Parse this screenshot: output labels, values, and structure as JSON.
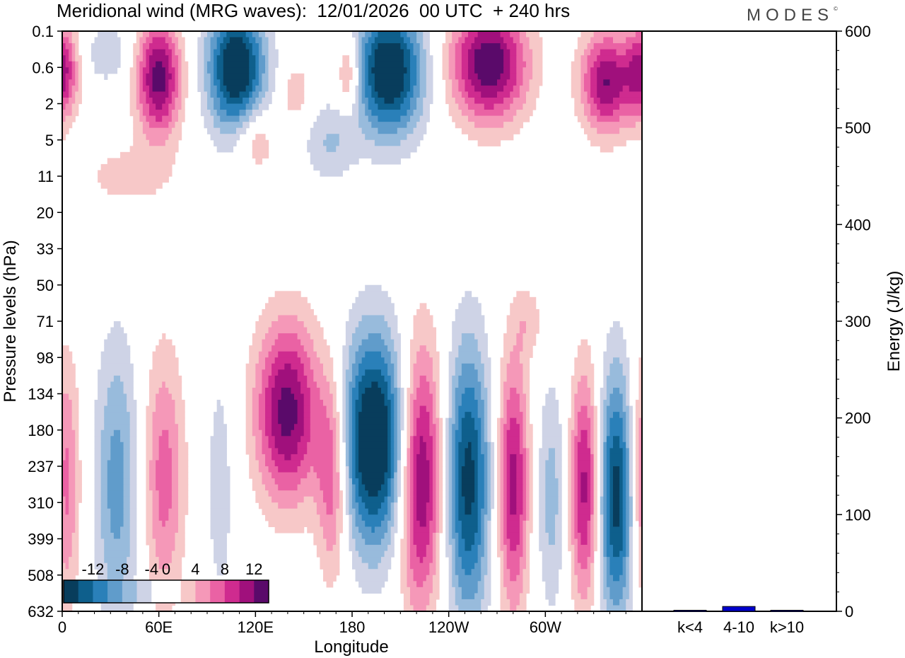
{
  "header": {
    "title": "Meridional wind (MRG waves):  12/01/2026  00 UTC  + 240 hrs",
    "brand": "MODES",
    "brand_mark": "©"
  },
  "colors": {
    "neg": [
      "#083d5c",
      "#0e5f8c",
      "#2a80b9",
      "#609ccb",
      "#98bbdc",
      "#ced3e6"
    ],
    "pos": [
      "#f7c8c8",
      "#f598b8",
      "#ea62a4",
      "#cf2b8f",
      "#a0107c",
      "#5a0a6a"
    ],
    "bar": "#0000cc"
  },
  "chart_data": [
    {
      "type": "heatmap",
      "title": "Meridional wind (MRG waves)",
      "xlabel": "Longitude",
      "ylabel": "Pressure levels (hPa)",
      "x_ticks": [
        "0",
        "60E",
        "120E",
        "180",
        "120W",
        "60W"
      ],
      "y_levels": [
        "0.1",
        "0.6",
        "2",
        "5",
        "11",
        "20",
        "33",
        "50",
        "71",
        "98",
        "134",
        "180",
        "237",
        "310",
        "399",
        "508",
        "632"
      ],
      "colorbar_labels": [
        "-12",
        "-8",
        "-4",
        "0",
        "4",
        "8",
        "12"
      ],
      "contour_levels": [
        -14,
        -12,
        -10,
        -8,
        -6,
        -4,
        -2,
        2,
        4,
        6,
        8,
        10,
        12,
        14
      ],
      "features": [
        {
          "lon": 0,
          "level_index": 1.1,
          "value": 10,
          "width_deg": 10,
          "depth_levels": 1.3
        },
        {
          "lon": 28,
          "level_index": 0.6,
          "value": -4,
          "width_deg": 14,
          "depth_levels": 0.8
        },
        {
          "lon": 60,
          "level_index": 1.3,
          "value": 13,
          "width_deg": 14,
          "depth_levels": 1.6
        },
        {
          "lon": 108,
          "level_index": 1.0,
          "value": -15,
          "width_deg": 18,
          "depth_levels": 1.8
        },
        {
          "lon": 145,
          "level_index": 1.7,
          "value": 4,
          "width_deg": 8,
          "depth_levels": 0.8
        },
        {
          "lon": 178,
          "level_index": 1.2,
          "value": 7,
          "width_deg": 8,
          "depth_levels": 1.0
        },
        {
          "lon": 203,
          "level_index": 1.1,
          "value": -15,
          "width_deg": 22,
          "depth_levels": 1.8
        },
        {
          "lon": 265,
          "level_index": 0.9,
          "value": 14,
          "width_deg": 24,
          "depth_levels": 1.6
        },
        {
          "lon": 338,
          "level_index": 1.4,
          "value": 12,
          "width_deg": 16,
          "depth_levels": 1.4
        },
        {
          "lon": 120,
          "level_index": 3.0,
          "value": 5,
          "width_deg": 12,
          "depth_levels": 0.9
        },
        {
          "lon": 166,
          "level_index": 3.1,
          "value": -4,
          "width_deg": 16,
          "depth_levels": 1.1
        },
        {
          "lon": 40,
          "level_index": 4.0,
          "value": 3,
          "width_deg": 30,
          "depth_levels": 0.9
        },
        {
          "lon": 0,
          "level_index": 12.5,
          "value": 10,
          "width_deg": 10,
          "depth_levels": 3.5
        },
        {
          "lon": 34,
          "level_index": 12.5,
          "value": -7,
          "width_deg": 14,
          "depth_levels": 4.0
        },
        {
          "lon": 63,
          "level_index": 12.3,
          "value": 7,
          "width_deg": 13,
          "depth_levels": 3.5
        },
        {
          "lon": 98,
          "level_index": 12.5,
          "value": -3,
          "width_deg": 10,
          "depth_levels": 4.0
        },
        {
          "lon": 140,
          "level_index": 10.5,
          "value": 13,
          "width_deg": 20,
          "depth_levels": 2.5
        },
        {
          "lon": 168,
          "level_index": 12.2,
          "value": 9,
          "width_deg": 10,
          "depth_levels": 2.8
        },
        {
          "lon": 194,
          "level_index": 11.3,
          "value": -16,
          "width_deg": 22,
          "depth_levels": 3.0
        },
        {
          "lon": 222,
          "level_index": 12.2,
          "value": 14,
          "width_deg": 14,
          "depth_levels": 3.6
        },
        {
          "lon": 252,
          "level_index": 12.4,
          "value": -13,
          "width_deg": 14,
          "depth_levels": 3.8
        },
        {
          "lon": 280,
          "level_index": 12.5,
          "value": 11,
          "width_deg": 10,
          "depth_levels": 3.5
        },
        {
          "lon": 304,
          "level_index": 12.8,
          "value": -5,
          "width_deg": 10,
          "depth_levels": 3.2
        },
        {
          "lon": 325,
          "level_index": 12.6,
          "value": 12,
          "width_deg": 10,
          "depth_levels": 3.2
        },
        {
          "lon": 345,
          "level_index": 12.8,
          "value": -14,
          "width_deg": 14,
          "depth_levels": 3.5
        },
        {
          "lon": 290,
          "level_index": 8.0,
          "value": 3,
          "width_deg": 10,
          "depth_levels": 1.0
        }
      ]
    },
    {
      "type": "bar",
      "ylabel": "Energy (J/kg)",
      "categories": [
        "k<4",
        "4-10",
        "k>10"
      ],
      "values": [
        0.5,
        5,
        0.3
      ],
      "ylim": [
        0,
        600
      ],
      "y_ticks": [
        "0",
        "100",
        "200",
        "300",
        "400",
        "500",
        "600"
      ]
    }
  ]
}
